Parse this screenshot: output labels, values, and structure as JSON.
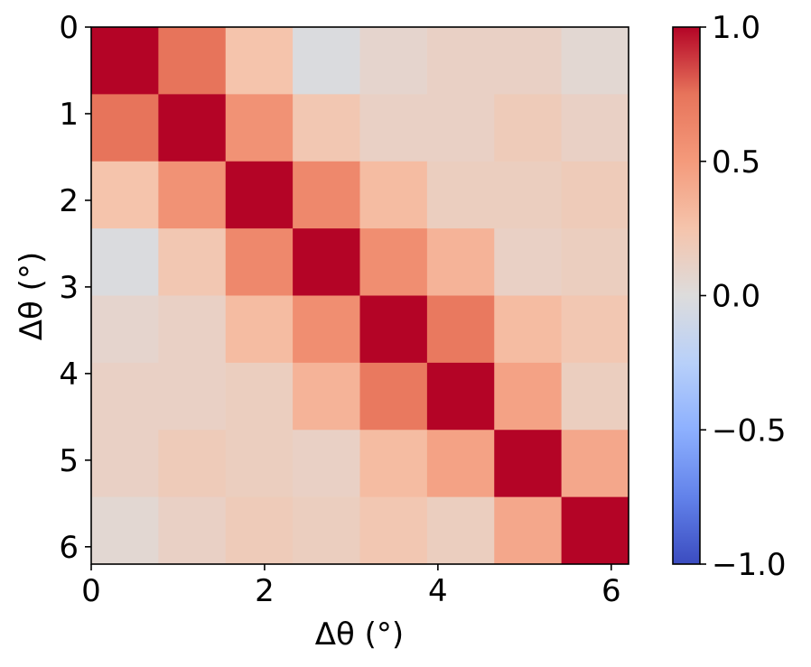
{
  "chart_data": {
    "type": "heatmap",
    "title": "",
    "xlabel": "Δθ (°)",
    "ylabel": "Δθ (°)",
    "x_extent": [
      0,
      6.2
    ],
    "y_extent": [
      0,
      6.2
    ],
    "y_inverted": true,
    "n_rows": 8,
    "n_cols": 8,
    "x_ticks": [
      {
        "value": 0,
        "label": "0"
      },
      {
        "value": 2,
        "label": "2"
      },
      {
        "value": 4,
        "label": "4"
      },
      {
        "value": 6,
        "label": "6"
      }
    ],
    "y_ticks": [
      {
        "value": 0,
        "label": "0"
      },
      {
        "value": 1,
        "label": "1"
      },
      {
        "value": 2,
        "label": "2"
      },
      {
        "value": 3,
        "label": "3"
      },
      {
        "value": 4,
        "label": "4"
      },
      {
        "value": 5,
        "label": "5"
      },
      {
        "value": 6,
        "label": "6"
      }
    ],
    "values": [
      [
        1.0,
        0.75,
        0.25,
        -0.02,
        0.08,
        0.12,
        0.12,
        0.05
      ],
      [
        0.75,
        1.0,
        0.55,
        0.22,
        0.12,
        0.12,
        0.18,
        0.12
      ],
      [
        0.25,
        0.55,
        1.0,
        0.62,
        0.3,
        0.15,
        0.15,
        0.18
      ],
      [
        -0.02,
        0.22,
        0.62,
        1.0,
        0.58,
        0.35,
        0.12,
        0.15
      ],
      [
        0.08,
        0.12,
        0.3,
        0.58,
        1.0,
        0.72,
        0.3,
        0.22
      ],
      [
        0.12,
        0.12,
        0.15,
        0.35,
        0.72,
        1.0,
        0.45,
        0.15
      ],
      [
        0.12,
        0.18,
        0.15,
        0.12,
        0.3,
        0.45,
        1.0,
        0.42
      ],
      [
        0.05,
        0.12,
        0.18,
        0.15,
        0.22,
        0.15,
        0.42,
        1.0
      ]
    ],
    "colormap": "coolwarm",
    "colorbar": {
      "range": [
        -1.0,
        1.0
      ],
      "ticks": [
        {
          "value": 1.0,
          "label": "1.0"
        },
        {
          "value": 0.5,
          "label": "0.5"
        },
        {
          "value": 0.0,
          "label": "0.0"
        },
        {
          "value": -0.5,
          "label": "−0.5"
        },
        {
          "value": -1.0,
          "label": "−1.0"
        }
      ]
    }
  }
}
